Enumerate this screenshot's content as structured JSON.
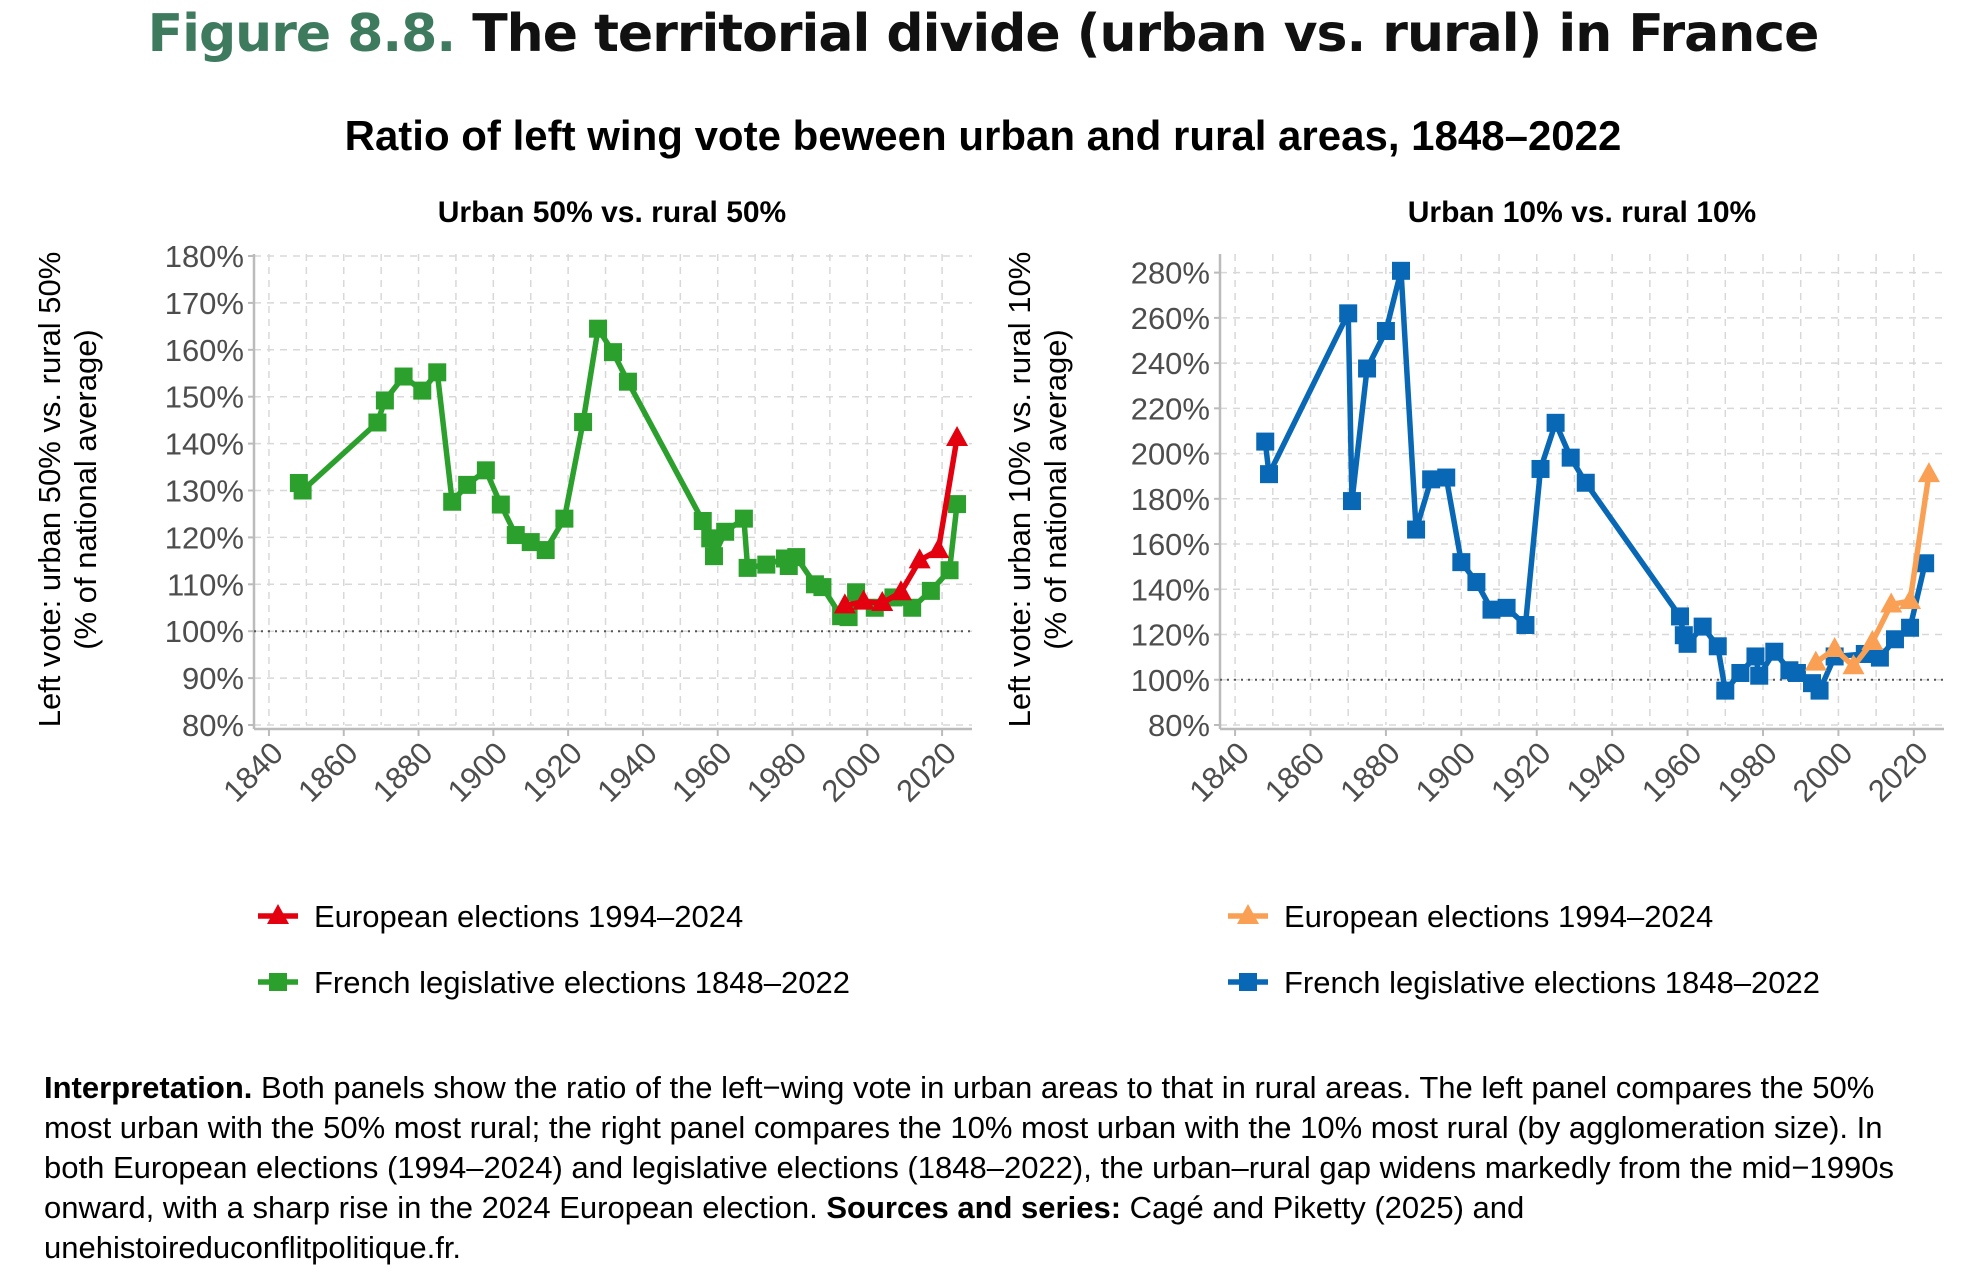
{
  "header": {
    "figure_label": "Figure 8.8.",
    "title": "The territorial divide (urban vs. rural) in France",
    "subtitle": "Ratio of left wing vote beween urban and rural areas, 1848–2022"
  },
  "chart_data": [
    {
      "type": "line",
      "title": "Urban 50% vs. rural 50%",
      "ylabel": "Left vote: urban 50% vs. rural 50%",
      "ylabel2": "(% of national average)",
      "xlim": [
        1836,
        2028
      ],
      "ylim": [
        80,
        180
      ],
      "yticks": [
        80,
        90,
        100,
        110,
        120,
        130,
        140,
        150,
        160,
        170,
        180
      ],
      "xticks": [
        1840,
        1860,
        1880,
        1900,
        1920,
        1940,
        1960,
        1980,
        2000,
        2020
      ],
      "reference_line": 100,
      "grid": true,
      "legend_placement": "bottom",
      "series": [
        {
          "name": "European elections 1994–2024",
          "color": "#e3000f",
          "marker": "triangle",
          "x": [
            1994,
            1999,
            2004,
            2009,
            2014,
            2019,
            2024
          ],
          "y": [
            105.5,
            106.3,
            106,
            108.3,
            115.1,
            117.3,
            141.2
          ]
        },
        {
          "name": "French legislative elections 1848–2022",
          "color": "#2ca02c",
          "marker": "square",
          "x": [
            1848,
            1849,
            1869,
            1871,
            1876,
            1881,
            1885,
            1889,
            1893,
            1898,
            1902,
            1906,
            1910,
            1914,
            1919,
            1924,
            1928,
            1932,
            1936,
            1956,
            1958,
            1959,
            1962,
            1967,
            1968,
            1973,
            1978,
            1979,
            1981,
            1986,
            1988,
            1993,
            1995,
            1997,
            2002,
            2007,
            2012,
            2017,
            2022,
            2024
          ],
          "y": [
            131.6,
            130.0,
            144.5,
            149.2,
            154.3,
            151.3,
            155.2,
            127.6,
            131.2,
            134.3,
            127.0,
            120.5,
            119.0,
            117.3,
            124.0,
            144.6,
            164.5,
            159.5,
            153.2,
            123.5,
            119.8,
            116.0,
            121.2,
            124.0,
            113.5,
            114.2,
            115.5,
            113.9,
            115.8,
            110.0,
            109.4,
            103.2,
            103.0,
            108.3,
            105.0,
            107.2,
            105.0,
            108.6,
            113.0,
            127.1
          ]
        }
      ]
    },
    {
      "type": "line",
      "title": "Urban 10% vs. rural 10%",
      "ylabel": "Left vote: urban 10% vs. rural 10%",
      "ylabel2": "(% of national average)",
      "xlim": [
        1836,
        2028
      ],
      "ylim": [
        80,
        290
      ],
      "yticks": [
        80,
        100,
        120,
        140,
        160,
        180,
        200,
        220,
        240,
        260,
        280
      ],
      "xticks": [
        1840,
        1860,
        1880,
        1900,
        1920,
        1940,
        1960,
        1980,
        2000,
        2020
      ],
      "reference_line": 100,
      "grid": true,
      "legend_placement": "bottom",
      "series": [
        {
          "name": "European elections 1994–2024",
          "color": "#f9a055",
          "marker": "triangle",
          "x": [
            1994,
            1999,
            2004,
            2009,
            2014,
            2019,
            2024
          ],
          "y": [
            107.6,
            113.6,
            106.0,
            116.7,
            133.3,
            134.8,
            190.9
          ]
        },
        {
          "name": "French legislative elections 1848–2022",
          "color": "#0868b5",
          "marker": "square",
          "x": [
            1848,
            1849,
            1870,
            1871,
            1875,
            1880,
            1884,
            1888,
            1892,
            1896,
            1900,
            1904,
            1908,
            1912,
            1917,
            1921,
            1925,
            1929,
            1933,
            1958,
            1959,
            1960,
            1964,
            1968,
            1970,
            1974,
            1978,
            1979,
            1983,
            1987,
            1989,
            1993,
            1995,
            1999,
            2007,
            2011,
            2015,
            2019,
            2023
          ],
          "y": [
            205.3,
            190.9,
            262.0,
            179.0,
            237.6,
            254.2,
            280.8,
            166.4,
            188.6,
            189.4,
            152.0,
            143.2,
            131.0,
            131.8,
            124.2,
            193.2,
            213.6,
            198.2,
            187.1,
            128.0,
            119.7,
            115.9,
            123.5,
            114.8,
            95.2,
            103.0,
            110.3,
            101.8,
            112.4,
            104.2,
            103.0,
            98.5,
            95.2,
            110.3,
            111.4,
            109.8,
            117.9,
            123.0,
            151.5
          ]
        }
      ]
    }
  ],
  "interpretation": {
    "label": "Interpretation.",
    "text": " Both panels show the ratio of the left−wing vote in urban areas to that in rural areas. The left panel compares the 50% most urban with the 50% most rural; the right panel compares the 10% most urban with the 10% most rural (by agglomeration size). In both European elections (1994–2024) and legislative elections (1848–2022), the urban–rural gap widens markedly from the mid−1990s onward, with a sharp rise in the 2024 European election. ",
    "sources_label": "Sources and series:",
    "sources_text": " Cagé and Piketty (2025) and unehistoireduconflitpolitique.fr."
  }
}
